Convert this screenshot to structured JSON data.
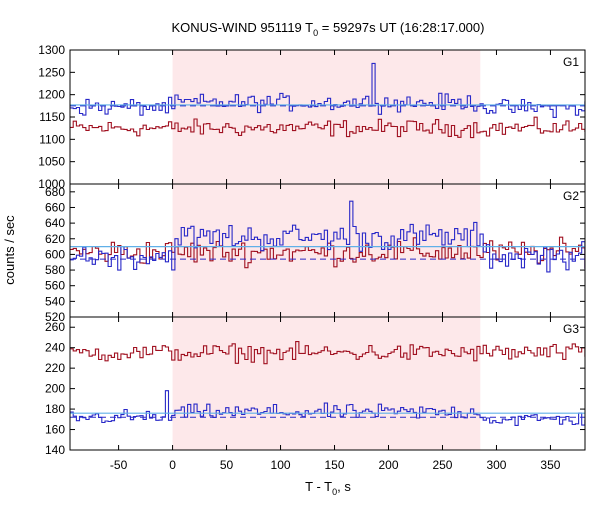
{
  "chart_data": {
    "type": "line",
    "title_main": "KONUS-WIND 951119 T",
    "title_sub": "0",
    "title_rest": " = 59297s UT (16:28:17.000)",
    "xlabel_main": "T - T",
    "xlabel_sub": "0",
    "xlabel_rest": ", s",
    "ylabel": "counts / sec",
    "xlim": [
      -95,
      382
    ],
    "xticks": [
      -50,
      0,
      50,
      100,
      150,
      200,
      250,
      300,
      350
    ],
    "highlight_interval": [
      0,
      285
    ],
    "colors": {
      "highlight": "#fde8ea",
      "red_series": "#a01020",
      "blue_series": "#2828c8",
      "fit_line": "#60b0e8",
      "background_line": "#2828c8"
    },
    "panels": [
      {
        "label": "G1",
        "ylim": [
          1000,
          1300
        ],
        "yticks": [
          1000,
          1050,
          1100,
          1150,
          1200,
          1250,
          1300
        ],
        "red_mean": 1125,
        "red_noise": 13,
        "blue_before": 1172,
        "blue_during": 1182,
        "blue_after": 1170,
        "blue_noise": 13,
        "blue_background": 1175,
        "blue_fit": 1177,
        "blue_peak": {
          "x": 185,
          "y": 1270
        }
      },
      {
        "label": "G2",
        "ylim": [
          520,
          690
        ],
        "yticks": [
          520,
          540,
          560,
          580,
          600,
          620,
          640,
          660,
          680
        ],
        "red_mean": 603,
        "red_noise": 11,
        "blue_before": 598,
        "blue_during": 622,
        "blue_after": 598,
        "blue_noise": 12,
        "blue_background": 594,
        "blue_fit": 610,
        "blue_peak": {
          "x": 165,
          "y": 668
        }
      },
      {
        "label": "G3",
        "ylim": [
          140,
          270
        ],
        "yticks": [
          140,
          160,
          180,
          200,
          220,
          240,
          260
        ],
        "red_mean": 235,
        "red_noise": 6,
        "blue_before": 172,
        "blue_during": 177,
        "blue_after": 170,
        "blue_noise": 5,
        "blue_background": 172,
        "blue_fit": 176,
        "blue_peak": {
          "x": -6,
          "y": 198
        }
      }
    ],
    "bin_width_s": 2.944,
    "grid": false
  }
}
